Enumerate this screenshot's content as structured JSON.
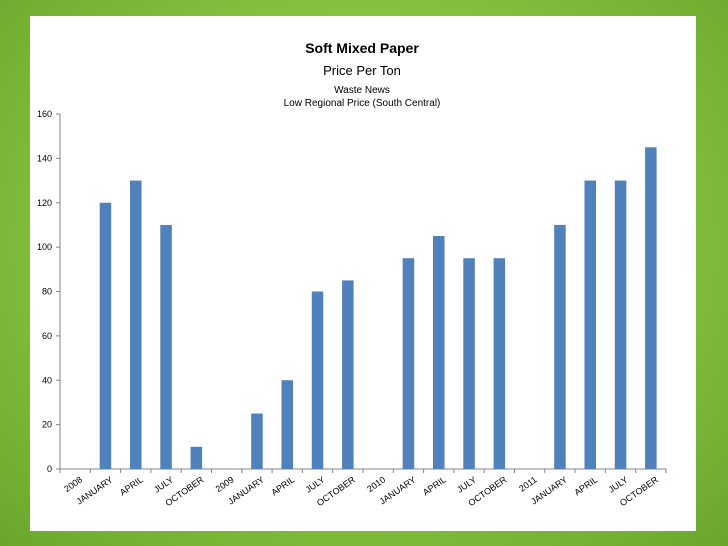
{
  "chart_data": {
    "type": "bar",
    "title": "Soft Mixed Paper",
    "subtitle": "Price Per Ton",
    "source_line_1": "Waste News",
    "source_line_2": "Low Regional Price (South Central)",
    "xlabel": "",
    "ylabel": "",
    "ylim": [
      0,
      160
    ],
    "yticks": [
      0,
      20,
      40,
      60,
      80,
      100,
      120,
      140,
      160
    ],
    "grid": false,
    "legend": "none",
    "bar_color": "#4f81bd",
    "categories": [
      "2008",
      "JANUARY",
      "APRIL",
      "JULY",
      "OCTOBER",
      "2009",
      "JANUARY",
      "APRIL",
      "JULY",
      "OCTOBER",
      "2010",
      "JANUARY",
      "APRIL",
      "JULY",
      "OCTOBER",
      "2011",
      "JANUARY",
      "APRIL",
      "JULY",
      "OCTOBER"
    ],
    "values": [
      null,
      120,
      130,
      110,
      10,
      null,
      25,
      40,
      80,
      85,
      null,
      95,
      105,
      95,
      95,
      null,
      110,
      130,
      130,
      145
    ]
  }
}
